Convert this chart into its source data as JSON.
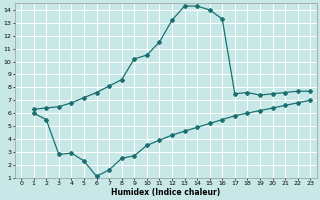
{
  "xlabel": "Humidex (Indice chaleur)",
  "bg_color": "#c8e8e8",
  "grid_color": "#ffffff",
  "line_color": "#1a7070",
  "xlim": [
    -0.5,
    23.5
  ],
  "ylim": [
    1,
    14.5
  ],
  "xticks": [
    0,
    1,
    2,
    3,
    4,
    5,
    6,
    7,
    8,
    9,
    10,
    11,
    12,
    13,
    14,
    15,
    16,
    17,
    18,
    19,
    20,
    21,
    22,
    23
  ],
  "yticks": [
    1,
    2,
    3,
    4,
    5,
    6,
    7,
    8,
    9,
    10,
    11,
    12,
    13,
    14
  ],
  "curve1_x": [
    1,
    2,
    3,
    4,
    5,
    6,
    7,
    8,
    9,
    10,
    11,
    12,
    13,
    14,
    15,
    16,
    17,
    18,
    19,
    20,
    21,
    22,
    23
  ],
  "curve1_y": [
    6.3,
    6.4,
    6.5,
    6.8,
    7.2,
    7.6,
    8.1,
    8.6,
    10.2,
    10.5,
    11.5,
    13.2,
    14.3,
    14.3,
    14.0,
    13.3,
    7.5,
    7.6,
    7.4,
    7.5,
    7.6,
    7.7,
    7.7
  ],
  "curve2_x": [
    1,
    2,
    3,
    4,
    5,
    6,
    7,
    8,
    9,
    10,
    11,
    12,
    13,
    14,
    15,
    16,
    17,
    18,
    19,
    20,
    21,
    22,
    23
  ],
  "curve2_y": [
    6.0,
    5.5,
    2.8,
    2.9,
    2.3,
    1.1,
    1.6,
    2.5,
    2.7,
    3.5,
    3.9,
    4.3,
    4.6,
    4.9,
    5.2,
    5.5,
    5.8,
    6.0,
    6.2,
    6.4,
    6.6,
    6.8,
    7.0
  ]
}
